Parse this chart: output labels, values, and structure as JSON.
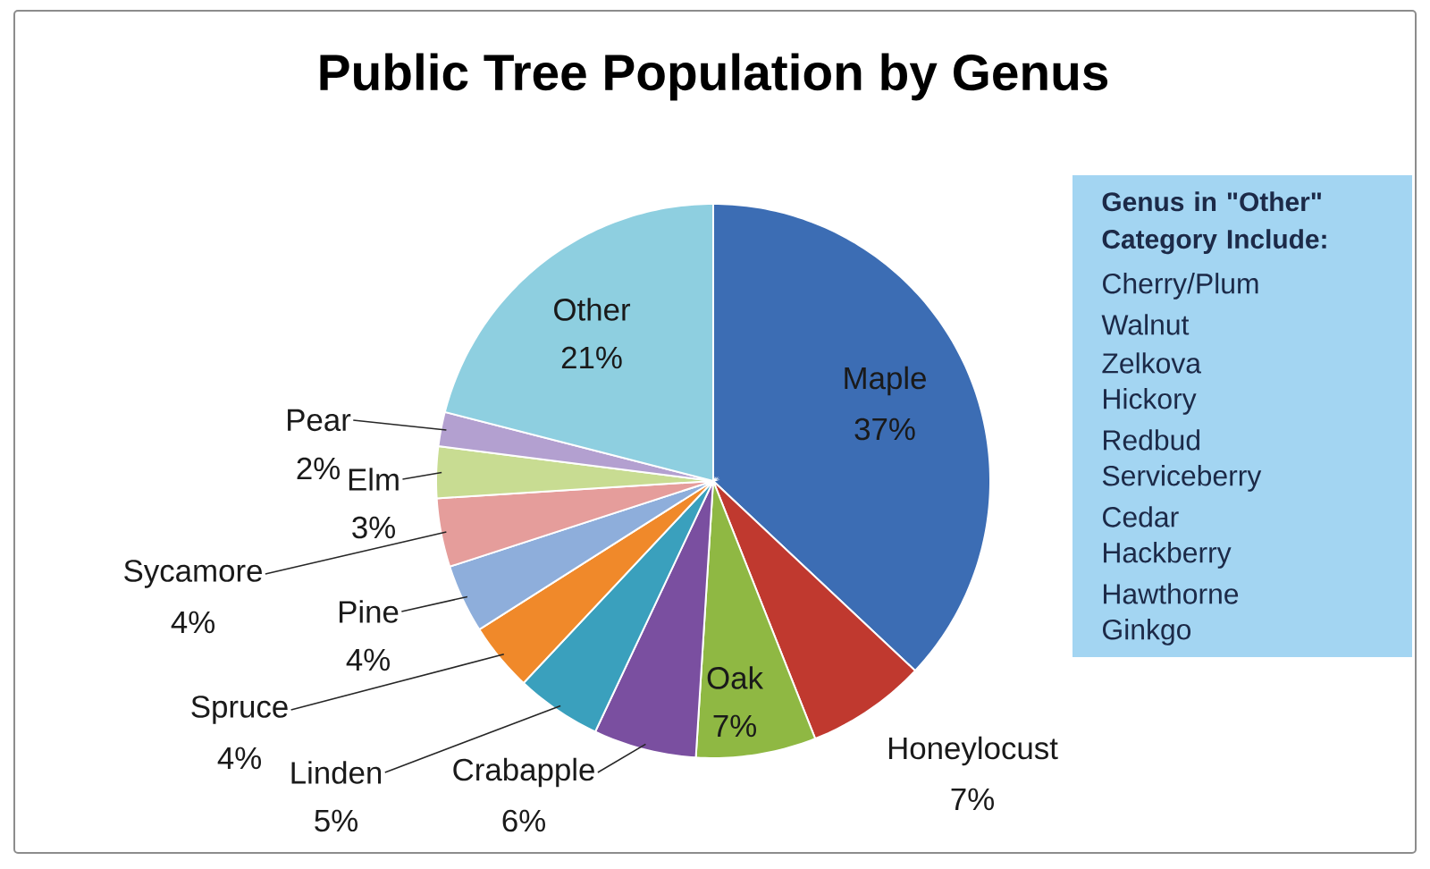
{
  "chart_data": {
    "type": "pie",
    "title": "Public Tree Population by Genus",
    "categories": [
      "Maple",
      "Honeylocust",
      "Oak",
      "Crabapple",
      "Linden",
      "Spruce",
      "Pine",
      "Sycamore",
      "Elm",
      "Pear",
      "Other"
    ],
    "values": [
      37,
      7,
      7,
      6,
      5,
      4,
      4,
      4,
      3,
      2,
      21
    ],
    "colors": [
      "#3c6db4",
      "#c0392f",
      "#8fb843",
      "#7a4fa0",
      "#3aa0bd",
      "#f0892a",
      "#8eaedb",
      "#e59d9b",
      "#c8dc92",
      "#b3a0d0",
      "#8ecfe0"
    ],
    "value_labels": [
      "37%",
      "7%",
      "7%",
      "6%",
      "5%",
      "4%",
      "4%",
      "4%",
      "3%",
      "2%",
      "21%"
    ],
    "annotations": [
      "Genus in \"Other\" Category Include:",
      "Cherry/Plum",
      "Walnut",
      "Zelkova",
      "Hickory",
      "Redbud",
      "Serviceberry",
      "Cedar",
      "Hackberry",
      "Hawthorne",
      "Ginkgo"
    ]
  }
}
